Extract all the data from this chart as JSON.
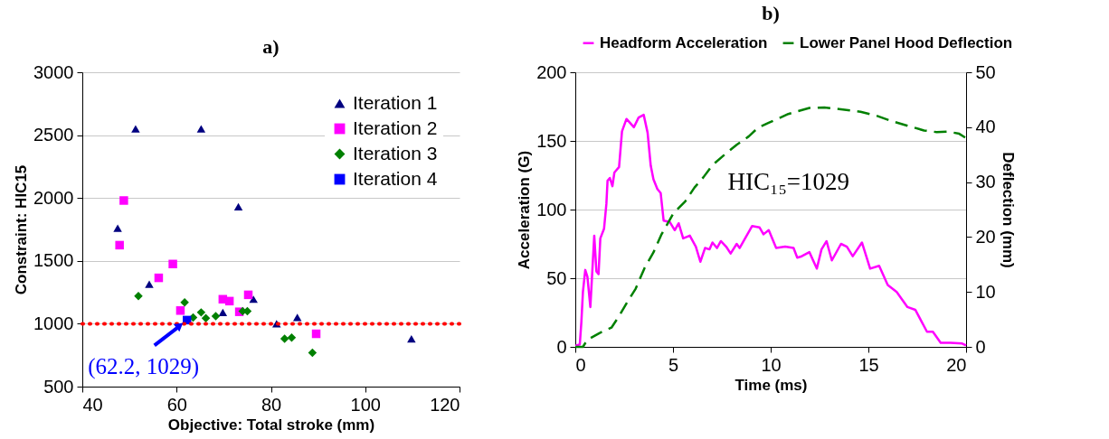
{
  "chart_data": [
    {
      "type": "scatter",
      "title": "a)",
      "xlabel": "Objective: Total stroke (mm)",
      "ylabel": "Constraint: HIC15",
      "xlim": [
        40,
        120
      ],
      "xticks": [
        40,
        60,
        80,
        100,
        120
      ],
      "ylim": [
        500,
        3000
      ],
      "yticks": [
        500,
        1000,
        1500,
        2000,
        2500,
        3000
      ],
      "grid": "y",
      "legend": "top right",
      "series": [
        {
          "name": "Iteration 1",
          "color": "#000080",
          "marker": "triangle",
          "x": [
            51.3,
            65.2,
            47.5,
            73.1,
            54.2,
            76.3,
            69.8,
            81.2,
            85.6,
            109.8
          ],
          "values": [
            2550,
            2550,
            1760,
            1930,
            1315,
            1195,
            1090,
            1000,
            1050,
            880
          ]
        },
        {
          "name": "Iteration 2",
          "color": "#ff00ff",
          "marker": "square",
          "x": [
            48.8,
            47.9,
            59.2,
            56.2,
            69.8,
            71.2,
            75.2,
            73.3,
            60.8,
            89.6
          ],
          "values": [
            1980,
            1625,
            1475,
            1365,
            1195,
            1180,
            1230,
            1095,
            1105,
            920
          ]
        },
        {
          "name": "Iteration 3",
          "color": "#008000",
          "marker": "diamond",
          "x": [
            51.9,
            61.7,
            65.2,
            66.2,
            68.3,
            74.0,
            75.0,
            82.9,
            84.4,
            88.8,
            63.5
          ],
          "values": [
            1220,
            1170,
            1090,
            1045,
            1060,
            1100,
            1100,
            880,
            890,
            770,
            1050
          ]
        },
        {
          "name": "Iteration 4",
          "color": "#0000ff",
          "marker": "square",
          "x": [
            62.2
          ],
          "values": [
            1029
          ]
        }
      ],
      "ref_lines": [
        {
          "axis": "y",
          "value": 1000,
          "color": "#ff0000",
          "line_style": "dotted"
        }
      ],
      "annotations": [
        {
          "text": "(62.2, 1029)",
          "x": 62.2,
          "y": 1029
        }
      ]
    },
    {
      "type": "line",
      "title": "b)",
      "xlabel": "Time (ms)",
      "ylabel": "Acceleration (G)",
      "y2label": "Deflection (mm)",
      "xlim": [
        0,
        20
      ],
      "xticks": [
        0,
        5,
        10,
        15,
        20
      ],
      "ylim": [
        0,
        200
      ],
      "yticks": [
        0,
        50,
        100,
        150,
        200
      ],
      "y2lim": [
        0,
        50
      ],
      "y2ticks": [
        0,
        10,
        20,
        30,
        40,
        50
      ],
      "grid": "y",
      "legend": "top",
      "series": [
        {
          "name": "Headform Acceleration",
          "color": "#ff00ff",
          "line_style": "solid",
          "x": [
            0,
            0.23,
            0.31,
            0.39,
            0.51,
            0.62,
            0.77,
            0.97,
            1.08,
            1.19,
            1.28,
            1.47,
            1.59,
            1.65,
            1.77,
            1.9,
            2.0,
            2.24,
            2.39,
            2.62,
            3.0,
            3.24,
            3.5,
            3.7,
            3.86,
            4.0,
            4.2,
            4.37,
            4.52,
            4.83,
            5.09,
            5.29,
            5.52,
            5.86,
            6.17,
            6.4,
            6.64,
            6.87,
            7.02,
            7.25,
            7.45,
            7.72,
            7.95,
            8.26,
            8.41,
            8.73,
            9.05,
            9.43,
            9.63,
            9.9,
            10.28,
            10.74,
            11.17,
            11.36,
            11.59,
            11.98,
            12.36,
            12.6,
            12.86,
            13.13,
            13.6,
            13.9,
            14.2,
            14.67,
            15.09,
            15.55,
            15.99,
            16.45,
            17.0,
            17.4,
            18.0,
            18.3,
            18.7,
            19.2,
            19.8,
            20
          ],
          "values": [
            0.7,
            1.8,
            18,
            40,
            56,
            51,
            29,
            81,
            55,
            53,
            79,
            86,
            104,
            121,
            123,
            117,
            127,
            131,
            157,
            166,
            160,
            167,
            169,
            156,
            132,
            122,
            115,
            112,
            92,
            91,
            85,
            90,
            79,
            81,
            73,
            62,
            72,
            71,
            76,
            72,
            77,
            73,
            68,
            75,
            72,
            80,
            88,
            87,
            82,
            85,
            72,
            73,
            72,
            65,
            66,
            69,
            57,
            71,
            77,
            63,
            75,
            73,
            66,
            76,
            57,
            59,
            45,
            40,
            29,
            27,
            11,
            11,
            3,
            3,
            2.4,
            1
          ]
        },
        {
          "name": "Lower Panel Hood Deflection",
          "color": "#008000",
          "line_style": "dashed",
          "axis": "y2",
          "x": [
            0,
            0.39,
            0.62,
            1.23,
            1.85,
            2.24,
            2.7,
            3.09,
            3.55,
            4.0,
            4.4,
            5.02,
            5.63,
            6.1,
            6.56,
            7.02,
            7.64,
            8.26,
            8.87,
            9.35,
            9.9,
            10.9,
            11.98,
            12.75,
            13.5,
            14.6,
            15.4,
            16.2,
            17.07,
            17.85,
            18.5,
            19.1,
            19.65,
            20
          ],
          "values": [
            0,
            0,
            1.3,
            2.5,
            3.5,
            5.6,
            8.4,
            10.6,
            14.4,
            17.2,
            20.4,
            24.3,
            26.5,
            29,
            30.9,
            33.1,
            35,
            36.8,
            38.3,
            39.9,
            40.8,
            42.4,
            43.5,
            43.6,
            43.3,
            42.8,
            42.1,
            41.1,
            40.2,
            39.4,
            39.1,
            39.2,
            38.8,
            38
          ]
        }
      ],
      "annotations": [
        "HIC₁₅=1029"
      ]
    }
  ]
}
